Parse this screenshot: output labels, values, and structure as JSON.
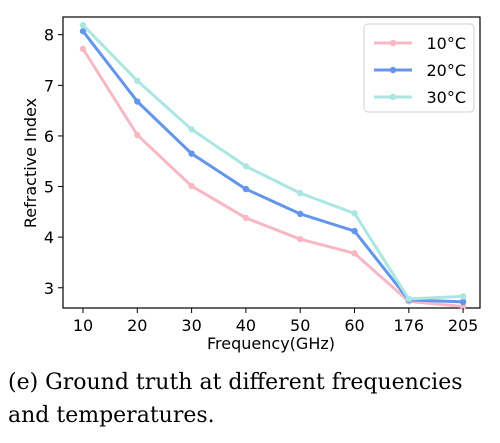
{
  "caption": "(e)  Ground truth at different frequencies and temperatures.",
  "chart_data": {
    "type": "line",
    "xlabel": "Frequency(GHz)",
    "ylabel": "Refractive Index",
    "categories": [
      "10",
      "20",
      "30",
      "40",
      "50",
      "60",
      "176",
      "205"
    ],
    "ylim": [
      2.6,
      8.35
    ],
    "yticks": [
      3,
      4,
      5,
      6,
      7,
      8
    ],
    "grid": false,
    "legend_position": "top-right",
    "series": [
      {
        "name": "10°C",
        "color": "#f7b8c4",
        "values": [
          7.72,
          6.02,
          5.01,
          4.38,
          3.96,
          3.68,
          2.73,
          2.63
        ]
      },
      {
        "name": "20°C",
        "color": "#6495ed",
        "values": [
          8.07,
          6.68,
          5.65,
          4.95,
          4.46,
          4.12,
          2.76,
          2.72
        ]
      },
      {
        "name": "30°C",
        "color": "#ace6e2",
        "values": [
          8.19,
          7.09,
          6.13,
          5.4,
          4.87,
          4.47,
          2.78,
          2.83
        ]
      }
    ]
  }
}
